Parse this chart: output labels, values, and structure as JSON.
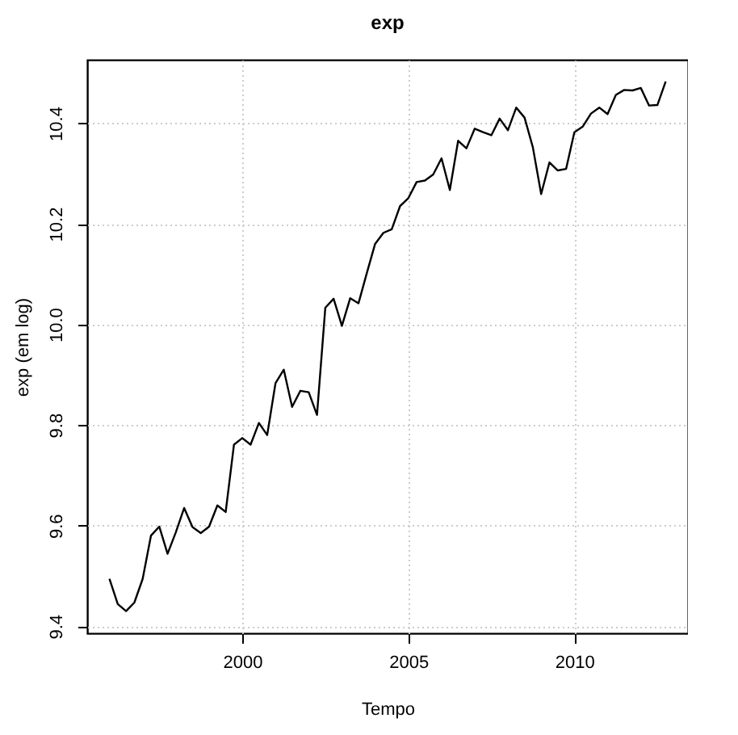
{
  "chart_data": {
    "type": "line",
    "title": "exp",
    "xlabel": "Tempo",
    "ylabel": "exp (em log)",
    "x": [
      1996,
      1996.25,
      1996.5,
      1996.75,
      1997,
      1997.25,
      1997.5,
      1997.75,
      1998,
      1998.25,
      1998.5,
      1998.75,
      1999,
      1999.25,
      1999.5,
      1999.75,
      2000,
      2000.25,
      2000.5,
      2000.75,
      2001,
      2001.25,
      2001.5,
      2001.75,
      2002,
      2002.25,
      2002.5,
      2002.75,
      2003,
      2003.25,
      2003.5,
      2003.75,
      2004,
      2004.25,
      2004.5,
      2004.75,
      2005,
      2005.25,
      2005.5,
      2005.75,
      2006,
      2006.25,
      2006.5,
      2006.75,
      2007,
      2007.25,
      2007.5,
      2007.75,
      2008,
      2008.25,
      2008.5,
      2008.75,
      2009,
      2009.25,
      2009.5,
      2009.75,
      2010,
      2010.25,
      2010.5,
      2010.75,
      2011,
      2011.25,
      2011.5,
      2011.75,
      2012,
      2012.25,
      2012.5,
      2012.75
    ],
    "series": [
      {
        "color": "#000000",
        "values": [
          9.494,
          9.444,
          9.43,
          9.447,
          9.494,
          9.58,
          9.598,
          9.544,
          9.587,
          9.635,
          9.597,
          9.585,
          9.598,
          9.64,
          9.627,
          9.761,
          9.774,
          9.761,
          9.804,
          9.78,
          9.883,
          9.91,
          9.836,
          9.868,
          9.865,
          9.82,
          10.033,
          10.051,
          9.997,
          10.052,
          10.042,
          10.102,
          10.16,
          10.182,
          10.189,
          10.235,
          10.251,
          10.283,
          10.286,
          10.298,
          10.33,
          10.267,
          10.365,
          10.35,
          10.389,
          10.382,
          10.376,
          10.409,
          10.386,
          10.431,
          10.411,
          10.352,
          10.259,
          10.322,
          10.306,
          10.309,
          10.382,
          10.393,
          10.419,
          10.431,
          10.418,
          10.456,
          10.466,
          10.465,
          10.47,
          10.435,
          10.436,
          10.483
        ]
      }
    ],
    "xlim": [
      1995.33,
      2013.42
    ],
    "xticks": [
      2000,
      2005,
      2010
    ],
    "ylim": [
      9.386,
      10.526
    ],
    "yticks": [
      9.4,
      9.6,
      9.8,
      {
        "value": 10,
        "label": "10.0"
      },
      10.2,
      10.4
    ],
    "grid": true,
    "line_style": "solid"
  }
}
